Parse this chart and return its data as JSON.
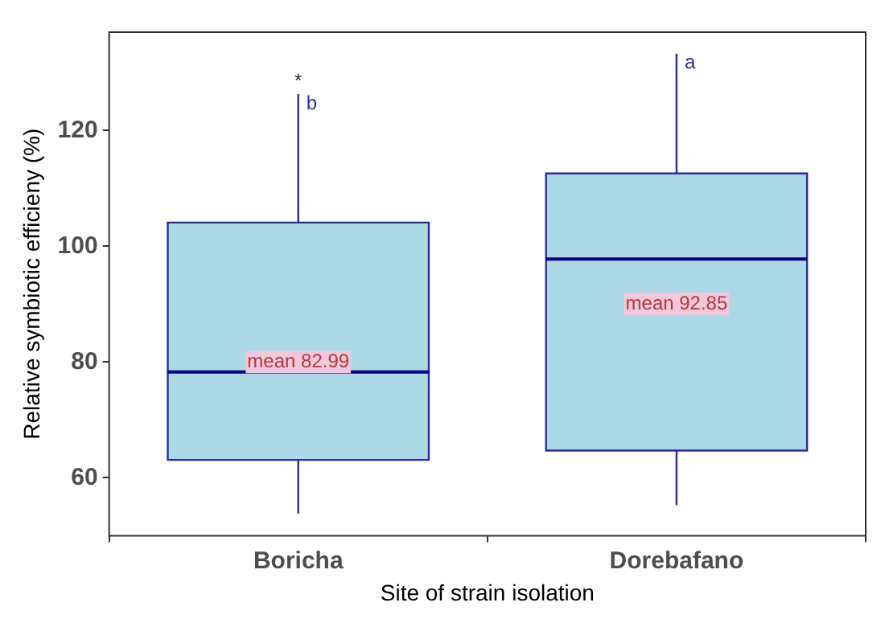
{
  "chart_data": {
    "type": "box",
    "xlabel": "Site of strain isolation",
    "ylabel": "Relative symbiotic efficieny (%)",
    "categories": [
      "Boricha",
      "Dorebafano"
    ],
    "boxes": [
      {
        "low": 53.8,
        "q1": 63.1,
        "median": 78.3,
        "q3": 104.1,
        "high": 126.3
      },
      {
        "low": 55.3,
        "q1": 64.7,
        "median": 97.8,
        "q3": 112.6,
        "high": 133.3
      }
    ],
    "color": "#add8e6",
    "ylim": [
      50,
      137
    ],
    "yticks": [
      60,
      80,
      100,
      120
    ],
    "grid": false,
    "legend": false,
    "annotations": [
      "*",
      {
        "text": "b",
        "x": "Boricha",
        "y": 126.3
      },
      {
        "text": "a",
        "x": "Dorebafano",
        "y": 133.3
      },
      "mean 82.99",
      "mean 92.85"
    ]
  }
}
